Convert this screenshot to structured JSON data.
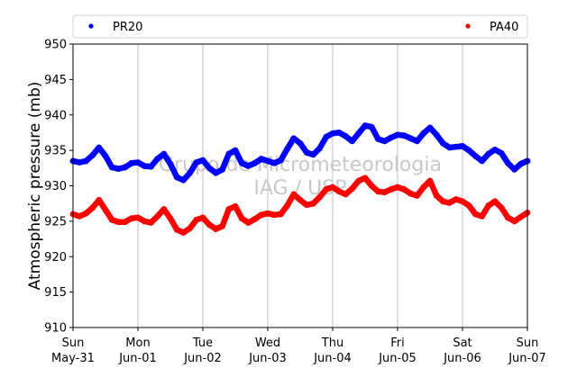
{
  "chart_data": {
    "type": "scatter",
    "ylabel": "Atmospheric pressure (mb)",
    "ylim": [
      910,
      950
    ],
    "yticks": [
      910,
      915,
      920,
      925,
      930,
      935,
      940,
      945,
      950
    ],
    "xlim": [
      0,
      7
    ],
    "xticks": [
      {
        "x": 0,
        "day": "Sun",
        "date": "May-31"
      },
      {
        "x": 1,
        "day": "Mon",
        "date": "Jun-01"
      },
      {
        "x": 2,
        "day": "Tue",
        "date": "Jun-02"
      },
      {
        "x": 3,
        "day": "Wed",
        "date": "Jun-03"
      },
      {
        "x": 4,
        "day": "Thu",
        "date": "Jun-04"
      },
      {
        "x": 5,
        "day": "Fri",
        "date": "Jun-05"
      },
      {
        "x": 6,
        "day": "Sat",
        "date": "Jun-06"
      },
      {
        "x": 7,
        "day": "Sun",
        "date": "Jun-07"
      }
    ],
    "grid": "vertical",
    "legend_placement": "top",
    "watermark": [
      "Grupo de Micrometeorologia",
      "IAG / USP"
    ],
    "series": [
      {
        "name": "PR20",
        "color": "#0000ff",
        "x": [
          0,
          0.1,
          0.2,
          0.3,
          0.4,
          0.5,
          0.6,
          0.7,
          0.8,
          0.9,
          1.0,
          1.1,
          1.2,
          1.3,
          1.4,
          1.5,
          1.6,
          1.7,
          1.8,
          1.9,
          2.0,
          2.1,
          2.2,
          2.3,
          2.4,
          2.5,
          2.6,
          2.7,
          2.8,
          2.9,
          3.0,
          3.1,
          3.2,
          3.3,
          3.4,
          3.5,
          3.6,
          3.7,
          3.8,
          3.9,
          4.0,
          4.1,
          4.2,
          4.3,
          4.4,
          4.5,
          4.6,
          4.7,
          4.8,
          4.9,
          5.0,
          5.1,
          5.2,
          5.3,
          5.4,
          5.5,
          5.6,
          5.7,
          5.8,
          5.9,
          6.0,
          6.1,
          6.2,
          6.3,
          6.4,
          6.5,
          6.6,
          6.7,
          6.8,
          6.9,
          7.0
        ],
        "values": [
          933.5,
          933.3,
          933.5,
          934.3,
          935.4,
          934.2,
          932.6,
          932.4,
          932.6,
          933.2,
          933.3,
          932.8,
          932.7,
          933.8,
          934.5,
          933.1,
          931.2,
          930.8,
          931.8,
          933.3,
          933.6,
          932.5,
          931.8,
          932.3,
          934.5,
          935.0,
          933.2,
          932.8,
          933.2,
          933.8,
          933.5,
          933.2,
          933.6,
          935.2,
          936.7,
          936.0,
          934.7,
          934.4,
          935.3,
          936.9,
          937.4,
          937.5,
          937.0,
          936.3,
          937.4,
          938.5,
          938.3,
          936.6,
          936.3,
          936.8,
          937.2,
          937.1,
          936.7,
          936.3,
          937.4,
          938.2,
          937.2,
          936.0,
          935.4,
          935.5,
          935.6,
          935.0,
          934.2,
          933.5,
          934.5,
          935.1,
          934.6,
          933.2,
          932.3,
          933.1,
          933.5
        ]
      },
      {
        "name": "PA40",
        "color": "#ff0000",
        "x": [
          0,
          0.1,
          0.2,
          0.3,
          0.4,
          0.5,
          0.6,
          0.7,
          0.8,
          0.9,
          1.0,
          1.1,
          1.2,
          1.3,
          1.4,
          1.5,
          1.6,
          1.7,
          1.8,
          1.9,
          2.0,
          2.1,
          2.2,
          2.3,
          2.4,
          2.5,
          2.6,
          2.7,
          2.8,
          2.9,
          3.0,
          3.1,
          3.2,
          3.3,
          3.4,
          3.5,
          3.6,
          3.7,
          3.8,
          3.9,
          4.0,
          4.1,
          4.2,
          4.3,
          4.4,
          4.5,
          4.6,
          4.7,
          4.8,
          4.9,
          5.0,
          5.1,
          5.2,
          5.3,
          5.4,
          5.5,
          5.6,
          5.7,
          5.8,
          5.9,
          6.0,
          6.1,
          6.2,
          6.3,
          6.4,
          6.5,
          6.6,
          6.7,
          6.8,
          6.9,
          7.0
        ],
        "values": [
          926.0,
          925.7,
          926.1,
          926.9,
          928.0,
          926.6,
          925.2,
          924.9,
          924.9,
          925.4,
          925.5,
          925.0,
          924.8,
          925.7,
          926.7,
          925.4,
          923.8,
          923.4,
          924.0,
          925.2,
          925.5,
          924.5,
          923.9,
          924.3,
          926.7,
          927.1,
          925.4,
          924.8,
          925.3,
          925.9,
          926.1,
          925.9,
          926.0,
          927.2,
          928.8,
          928.0,
          927.3,
          927.5,
          928.4,
          929.5,
          929.8,
          929.2,
          928.8,
          929.6,
          930.7,
          931.1,
          930.0,
          929.2,
          929.1,
          929.5,
          929.8,
          929.5,
          928.9,
          928.6,
          929.8,
          930.7,
          928.6,
          927.8,
          927.6,
          928.1,
          927.8,
          927.2,
          926.0,
          925.7,
          927.2,
          927.8,
          926.9,
          925.5,
          925.0,
          925.6,
          926.2
        ]
      }
    ]
  }
}
